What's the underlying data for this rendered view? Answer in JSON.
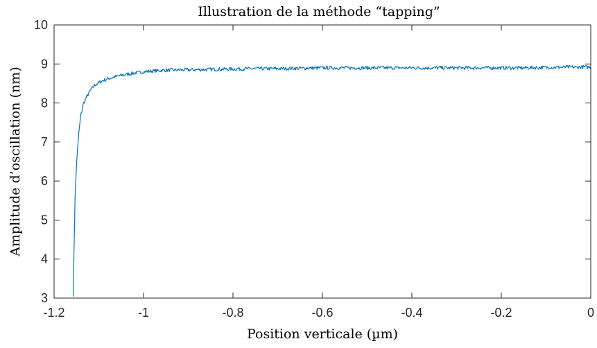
{
  "chart_data": {
    "type": "line",
    "title": "Illustration de la méthode “tapping”",
    "xlabel": "Position verticale (µm)",
    "ylabel": "Amplitude d’oscillation (nm)",
    "xlim": [
      -1.2,
      0
    ],
    "ylim": [
      3,
      10
    ],
    "x_ticks": [
      -1.2,
      -1.0,
      -0.8,
      -0.6,
      -0.4,
      -0.2,
      0
    ],
    "x_tick_labels": [
      "-1.2",
      "-1",
      "-0.8",
      "-0.6",
      "-0.4",
      "-0.2",
      "0"
    ],
    "y_ticks": [
      3,
      4,
      5,
      6,
      7,
      8,
      9,
      10
    ],
    "y_tick_labels": [
      "3",
      "4",
      "5",
      "6",
      "7",
      "8",
      "9",
      "10"
    ],
    "grid": false,
    "box": true,
    "series_color": "#0072BD",
    "series": [
      {
        "x": [
          -1.157,
          -1.155,
          -1.153,
          -1.15,
          -1.145,
          -1.14,
          -1.135,
          -1.13,
          -1.12,
          -1.11,
          -1.1,
          -1.09,
          -1.08,
          -1.06,
          -1.04,
          -1.02,
          -1.0,
          -0.98,
          -0.95,
          -0.9,
          -0.85,
          -0.8,
          -0.75,
          -0.7,
          -0.65,
          -0.6,
          -0.55,
          -0.5,
          -0.45,
          -0.4,
          -0.35,
          -0.3,
          -0.25,
          -0.2,
          -0.15,
          -0.1,
          -0.05,
          0.0
        ],
        "y": [
          3.1,
          4.5,
          5.6,
          6.4,
          7.2,
          7.7,
          7.95,
          8.1,
          8.3,
          8.45,
          8.52,
          8.58,
          8.62,
          8.68,
          8.73,
          8.77,
          8.8,
          8.82,
          8.84,
          8.85,
          8.86,
          8.87,
          8.88,
          8.88,
          8.89,
          8.9,
          8.9,
          8.9,
          8.9,
          8.9,
          8.9,
          8.9,
          8.9,
          8.9,
          8.9,
          8.91,
          8.92,
          8.92
        ]
      }
    ]
  }
}
